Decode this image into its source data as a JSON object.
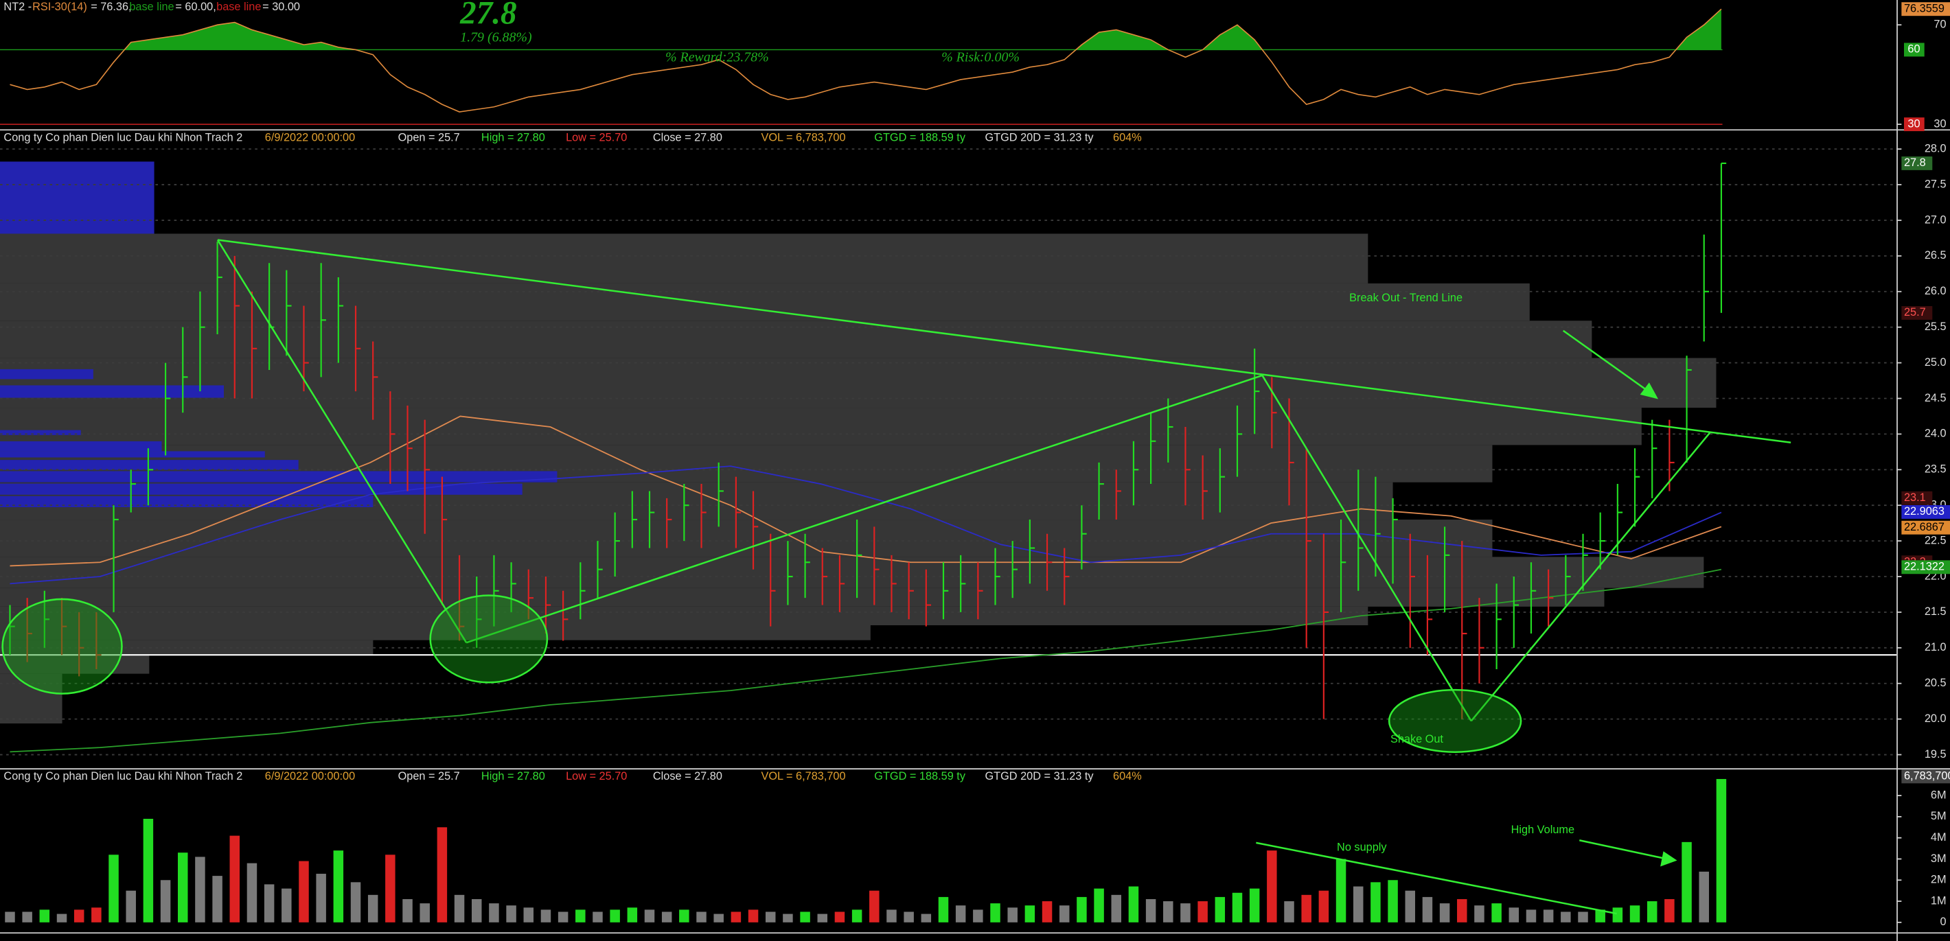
{
  "chart_data": [
    {
      "type": "line",
      "title": "NT2 -",
      "value_text": "= 76.36,",
      "series": [
        {
          "name": "RSI-30(14)",
          "color": "#e08a3c",
          "values": [
            46,
            44,
            45,
            47,
            44,
            46,
            55,
            63,
            64,
            65,
            66,
            68,
            70,
            71,
            68,
            66,
            64,
            62,
            63,
            61,
            60,
            58,
            50,
            45,
            42,
            38,
            35,
            36,
            37,
            39,
            41,
            42,
            43,
            44,
            46,
            48,
            50,
            51,
            52,
            53,
            54,
            56,
            52,
            46,
            42,
            40,
            41,
            43,
            45,
            46,
            47,
            46,
            45,
            44,
            46,
            48,
            49,
            50,
            51,
            53,
            54,
            56,
            62,
            67,
            68,
            66,
            64,
            60,
            57,
            60,
            66,
            70,
            64,
            55,
            45,
            38,
            40,
            44,
            42,
            41,
            43,
            45,
            42,
            44,
            43,
            42,
            44,
            46,
            47,
            48,
            49,
            50,
            51,
            52,
            54,
            55,
            57,
            65,
            70,
            76.3559
          ]
        }
      ],
      "fill_color": "#16a016",
      "base_lines": [
        {
          "name": "base line",
          "value": 60,
          "value_label": "= 60.00,",
          "badge": "60",
          "color": "#1c9e1c"
        },
        {
          "name": "base line",
          "value": 30,
          "value_label": "= 30.00",
          "badge": "30",
          "color": "#cc2020"
        }
      ],
      "last_badge": {
        "value": 76.3559,
        "label": "76.3559",
        "color": "#e08a3c",
        "text_color": "#000000"
      },
      "annotations": [
        {
          "text": "27.8"
        },
        {
          "text": "1.79 (6.88%)"
        },
        {
          "text": "% Reward:23.78%"
        },
        {
          "text": "% Risk:0.00%"
        }
      ],
      "ylim": [
        28,
        80
      ],
      "yticks": [
        30,
        70
      ]
    },
    {
      "type": "ohlc",
      "info_items": [
        {
          "text": "Cong ty Co phan Dien luc Dau khi Nhon Trach 2",
          "color": "#dddddd"
        },
        {
          "text": "6/9/2022 00:00:00",
          "color": "#e0a030"
        },
        {
          "text": "Open = 25.7",
          "color": "#dddddd"
        },
        {
          "text": "High = 27.80",
          "color": "#33dd33"
        },
        {
          "text": "Low = 25.70",
          "color": "#ee3333"
        },
        {
          "text": "Close = 27.80",
          "color": "#dddddd"
        },
        {
          "text": "VOL = 6,783,700",
          "color": "#e0a030"
        },
        {
          "text": "GTGD = 188.59  ty",
          "color": "#33dd33"
        },
        {
          "text": "GTGD 20D = 31.23  ty",
          "color": "#dddddd"
        },
        {
          "text": "604%",
          "color": "#e0a030"
        }
      ],
      "high": [
        21.6,
        21.7,
        21.8,
        21.7,
        21.5,
        21.5,
        23.0,
        23.5,
        23.8,
        25.0,
        25.5,
        26.0,
        26.7,
        26.5,
        26.0,
        26.4,
        26.3,
        25.8,
        26.4,
        26.2,
        25.8,
        25.3,
        24.6,
        24.4,
        24.2,
        23.4,
        22.3,
        22.0,
        22.3,
        22.2,
        22.1,
        22.0,
        21.8,
        22.2,
        22.5,
        22.9,
        23.2,
        23.2,
        23.1,
        23.3,
        23.3,
        23.6,
        23.4,
        23.2,
        22.6,
        22.5,
        22.6,
        22.4,
        22.3,
        22.8,
        22.7,
        22.3,
        22.2,
        22.1,
        22.2,
        22.3,
        22.2,
        22.4,
        22.5,
        22.8,
        22.6,
        22.4,
        23.0,
        23.6,
        23.5,
        23.9,
        24.3,
        24.5,
        24.1,
        23.7,
        23.8,
        24.4,
        25.2,
        24.8,
        24.5,
        23.8,
        22.6,
        22.8,
        23.5,
        23.4,
        23.1,
        22.6,
        22.3,
        22.7,
        22.5,
        21.7,
        21.9,
        22.0,
        22.2,
        22.1,
        22.3,
        22.6,
        22.9,
        23.3,
        23.8,
        24.2,
        24.2,
        25.1,
        26.8,
        27.8
      ],
      "low": [
        20.9,
        20.8,
        21.0,
        20.9,
        20.6,
        20.7,
        21.5,
        22.9,
        23.0,
        23.7,
        24.3,
        24.6,
        25.4,
        24.5,
        24.5,
        24.9,
        25.1,
        24.6,
        24.8,
        25.0,
        24.6,
        24.2,
        23.3,
        23.2,
        22.6,
        21.6,
        21.1,
        21.0,
        21.3,
        21.5,
        21.4,
        21.2,
        21.1,
        21.4,
        21.7,
        22.0,
        22.4,
        22.4,
        22.4,
        22.5,
        22.4,
        22.7,
        22.4,
        22.1,
        21.3,
        21.6,
        21.7,
        21.6,
        21.5,
        21.7,
        21.6,
        21.5,
        21.4,
        21.3,
        21.4,
        21.5,
        21.4,
        21.6,
        21.7,
        21.9,
        21.8,
        21.6,
        22.1,
        22.8,
        22.8,
        23.0,
        23.3,
        23.6,
        23.0,
        22.8,
        22.9,
        23.4,
        24.0,
        23.8,
        23.0,
        21.0,
        20.0,
        21.5,
        21.8,
        22.0,
        21.9,
        21.0,
        20.9,
        21.5,
        20.0,
        20.5,
        20.7,
        21.0,
        21.2,
        21.3,
        21.6,
        21.8,
        22.1,
        22.3,
        22.7,
        23.1,
        23.2,
        23.6,
        25.3,
        25.7
      ],
      "close": [
        21.3,
        21.2,
        21.4,
        21.3,
        21.0,
        20.9,
        22.8,
        23.3,
        23.5,
        24.5,
        24.8,
        25.5,
        26.2,
        25.8,
        25.2,
        25.5,
        25.8,
        25.0,
        25.6,
        25.8,
        25.2,
        24.8,
        24.0,
        23.8,
        23.5,
        22.8,
        21.3,
        21.4,
        21.8,
        21.9,
        21.7,
        21.6,
        21.4,
        21.8,
        22.1,
        22.5,
        22.8,
        22.9,
        22.8,
        23.0,
        22.9,
        23.2,
        22.9,
        22.7,
        21.8,
        22.0,
        22.2,
        22.0,
        21.9,
        22.3,
        22.1,
        21.9,
        21.8,
        21.6,
        21.8,
        21.9,
        21.8,
        22.0,
        22.1,
        22.4,
        22.2,
        22.0,
        22.6,
        23.3,
        23.2,
        23.5,
        23.9,
        24.1,
        23.5,
        23.2,
        23.4,
        24.0,
        24.6,
        24.3,
        23.6,
        22.5,
        21.5,
        22.2,
        22.4,
        22.6,
        22.8,
        22.0,
        21.4,
        22.3,
        21.2,
        21.0,
        21.4,
        21.6,
        21.8,
        21.7,
        22.0,
        22.3,
        22.5,
        22.9,
        23.4,
        23.8,
        23.6,
        24.9,
        26.0,
        27.8
      ],
      "up_color": "#22dd22",
      "down_color": "#dd2222",
      "moving_averages": [
        {
          "color": "#e08a50",
          "values": [
            22.15,
            22.2,
            22.6,
            23.1,
            23.6,
            24.25,
            24.1,
            23.5,
            23.0,
            22.35,
            22.2,
            22.2,
            22.2,
            22.2,
            22.75,
            22.95,
            22.85,
            22.55,
            22.25,
            22.7
          ]
        },
        {
          "color": "#2b2bc8",
          "values": [
            21.9,
            22.0,
            22.4,
            22.8,
            23.15,
            23.3,
            23.37,
            23.45,
            23.55,
            23.3,
            22.95,
            22.45,
            22.2,
            22.3,
            22.6,
            22.6,
            22.45,
            22.3,
            22.35,
            22.9
          ]
        },
        {
          "color": "#2aa02a",
          "values": [
            19.54,
            19.6,
            19.7,
            19.8,
            19.95,
            20.05,
            20.2,
            20.3,
            20.4,
            20.55,
            20.7,
            20.85,
            20.95,
            21.1,
            21.25,
            21.45,
            21.55,
            21.7,
            21.85,
            22.1
          ]
        }
      ],
      "support_line": 20.9,
      "badges": [
        {
          "value": 27.8,
          "label": "27.8",
          "color": "#2a6a2a",
          "text_color": "#ffffff"
        },
        {
          "value": 25.7,
          "label": "25.7",
          "color": "#3a0d0d",
          "text_color": "#ff5050"
        },
        {
          "value": 23.1,
          "label": "23.1",
          "color": "#3a0d0d",
          "text_color": "#ff5050"
        },
        {
          "value": 22.9063,
          "label": "22.9063",
          "color": "#2323c8",
          "text_color": "#ffffff"
        },
        {
          "value": 22.6867,
          "label": "22.6867",
          "color": "#e08a30",
          "text_color": "#000000"
        },
        {
          "value": 22.2,
          "label": "22.2",
          "color": "#3a0d0d",
          "text_color": "#ff5050"
        },
        {
          "value": 22.1322,
          "label": "22.1322",
          "color": "#1f9a1f",
          "text_color": "#ffffff"
        }
      ],
      "annotations": [
        {
          "text": "Break Out - Trend Line"
        },
        {
          "text": "Shake Out"
        }
      ],
      "ylim": [
        19.31,
        28.26
      ],
      "yticks": [
        {
          "value": 19.5,
          "label": "19.5"
        },
        {
          "value": 20,
          "label": "20.0"
        },
        {
          "value": 20.5,
          "label": "20.5"
        },
        {
          "value": 21,
          "label": "21.0"
        },
        {
          "value": 21.5,
          "label": "21.5"
        },
        {
          "value": 22,
          "label": "22.0"
        },
        {
          "value": 22.5,
          "label": "22.5"
        },
        {
          "value": 23,
          "label": "23.0"
        },
        {
          "value": 23.5,
          "label": "23.5"
        },
        {
          "value": 24,
          "label": "24.0"
        },
        {
          "value": 24.5,
          "label": "24.5"
        },
        {
          "value": 25,
          "label": "25.0"
        },
        {
          "value": 25.5,
          "label": "25.5"
        },
        {
          "value": 26,
          "label": "26.0"
        },
        {
          "value": 26.5,
          "label": "26.5"
        },
        {
          "value": 27,
          "label": "27.0"
        },
        {
          "value": 27.5,
          "label": "27.5"
        },
        {
          "value": 28,
          "label": "28.0"
        }
      ],
      "grid": true
    },
    {
      "type": "bar",
      "values": [
        500000,
        500000,
        600000,
        400000,
        600000,
        700000,
        3200000,
        1500000,
        4900000,
        2000000,
        3300000,
        3100000,
        2200000,
        4100000,
        2800000,
        1800000,
        1600000,
        2900000,
        2300000,
        3400000,
        1900000,
        1300000,
        3200000,
        1100000,
        900000,
        4500000,
        1300000,
        1100000,
        900000,
        800000,
        700000,
        600000,
        500000,
        600000,
        500000,
        600000,
        700000,
        600000,
        500000,
        600000,
        500000,
        400000,
        500000,
        600000,
        500000,
        400000,
        500000,
        400000,
        500000,
        600000,
        1500000,
        600000,
        500000,
        400000,
        1200000,
        800000,
        600000,
        900000,
        700000,
        800000,
        1000000,
        800000,
        1200000,
        1600000,
        1300000,
        1700000,
        1100000,
        1000000,
        900000,
        1000000,
        1200000,
        1400000,
        1600000,
        3400000,
        1000000,
        1300000,
        1500000,
        3000000,
        1700000,
        1900000,
        2000000,
        1500000,
        1200000,
        900000,
        1100000,
        800000,
        900000,
        700000,
        600000,
        600000,
        500000,
        500000,
        600000,
        700000,
        800000,
        1000000,
        1100000,
        3800000,
        2400000,
        6783700
      ],
      "color": "#7a7a7a",
      "last_badge": {
        "value": 6783700,
        "label": "6,783,700",
        "color": "#444444",
        "text_color": "#ffffff"
      },
      "annotations": [
        {
          "text": "No supply"
        },
        {
          "text": "High Volume"
        }
      ],
      "ylim": [
        -470000,
        7235000
      ],
      "yticks": [
        0,
        {
          "value": 1000000,
          "label": "1M"
        },
        {
          "value": 2000000,
          "label": "2M"
        },
        {
          "value": 3000000,
          "label": "3M"
        },
        {
          "value": 4000000,
          "label": "4M"
        },
        {
          "value": 5000000,
          "label": "5M"
        },
        {
          "value": 6000000,
          "label": "6M"
        }
      ]
    }
  ]
}
